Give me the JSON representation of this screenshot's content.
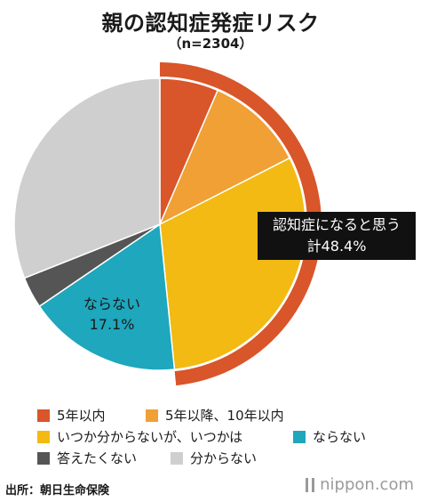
{
  "chart_data": {
    "type": "pie",
    "title": "親の認知症発症リスク",
    "subtitle": "（n=2304）",
    "slices": [
      {
        "label": "5年以内",
        "value": 6.5,
        "color": "#d9552a"
      },
      {
        "label": "5年以降、10年以内",
        "value": 11.0,
        "color": "#f0a035"
      },
      {
        "label": "いつか分からないが、いつかは",
        "value": 30.9,
        "color": "#f2ba12"
      },
      {
        "label": "ならない",
        "value": 17.1,
        "color": "#1ea7bd"
      },
      {
        "label": "答えたくない",
        "value": 3.5,
        "color": "#555555"
      },
      {
        "label": "分からない",
        "value": 31.0,
        "color": "#cfcfcf"
      }
    ],
    "highlight": {
      "text_line1": "認知症になると思う",
      "text_line2": "計48.4%",
      "value": 48.4,
      "color": "#d9552a"
    },
    "slice_label": {
      "line1": "ならない",
      "line2": "17.1%"
    },
    "legend_placement": "bottom"
  },
  "footer": {
    "source": "出所：朝日生命保険",
    "brand": "nippon.com"
  }
}
